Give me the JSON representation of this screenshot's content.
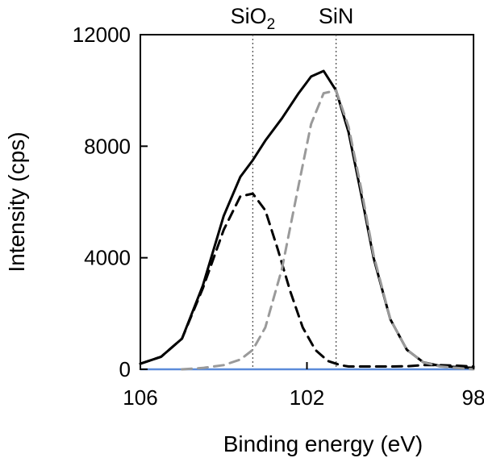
{
  "chart_data": {
    "type": "line",
    "title": "",
    "xlabel": "Binding energy (eV)",
    "ylabel": "Intensity (cps)",
    "xlim": [
      106,
      98
    ],
    "ylim": [
      0,
      12000
    ],
    "x_reversed": true,
    "grid": false,
    "legend": "none",
    "xticks": [
      106,
      102,
      98
    ],
    "yticks": [
      0,
      4000,
      8000,
      12000
    ],
    "x_tick_labels": [
      "106",
      "102",
      "98"
    ],
    "y_tick_labels": [
      "0",
      "4000",
      "8000",
      "12000"
    ],
    "reference_lines": [
      {
        "x": 103.3,
        "label": "SiO",
        "label_sub": "2"
      },
      {
        "x": 101.3,
        "label": "SiN",
        "label_sub": ""
      }
    ],
    "series": [
      {
        "style": "solid",
        "color": "#000000",
        "x": [
          106.0,
          105.5,
          105.0,
          104.5,
          104.0,
          103.6,
          103.3,
          103.0,
          102.6,
          102.2,
          101.9,
          101.6,
          101.3,
          101.0,
          100.7,
          100.4,
          100.0,
          99.6,
          99.2,
          98.8,
          98.4,
          98.0
        ],
        "y": [
          200,
          450,
          1100,
          3000,
          5500,
          6900,
          7500,
          8200,
          9000,
          9900,
          10500,
          10700,
          10000,
          8500,
          6300,
          4000,
          1800,
          700,
          250,
          120,
          80,
          50
        ]
      },
      {
        "style": "dashed",
        "color": "#000000",
        "x": [
          106.0,
          105.5,
          105.0,
          104.5,
          104.0,
          103.6,
          103.3,
          103.0,
          102.7,
          102.4,
          102.1,
          101.8,
          101.5,
          101.2,
          101.0,
          100.7,
          100.4,
          100.0,
          99.6,
          99.2,
          98.8,
          98.4,
          98.0
        ],
        "y": [
          200,
          450,
          1100,
          2900,
          5000,
          6200,
          6300,
          5700,
          4300,
          2800,
          1500,
          700,
          300,
          150,
          100,
          100,
          100,
          100,
          110,
          150,
          150,
          130,
          100
        ]
      },
      {
        "style": "dashed",
        "color": "#9a9a9a",
        "x": [
          105.0,
          104.5,
          104.0,
          103.6,
          103.3,
          103.0,
          102.6,
          102.2,
          101.9,
          101.6,
          101.3,
          101.0,
          100.7,
          100.4,
          100.0,
          99.6,
          99.2,
          98.8,
          98.4,
          98.0
        ],
        "y": [
          0,
          50,
          150,
          350,
          700,
          1500,
          3600,
          6600,
          8800,
          9900,
          10000,
          8700,
          6500,
          4100,
          1800,
          700,
          250,
          100,
          50,
          0
        ]
      }
    ],
    "baseline": {
      "y": 0,
      "color": "#5b8bd9"
    }
  }
}
